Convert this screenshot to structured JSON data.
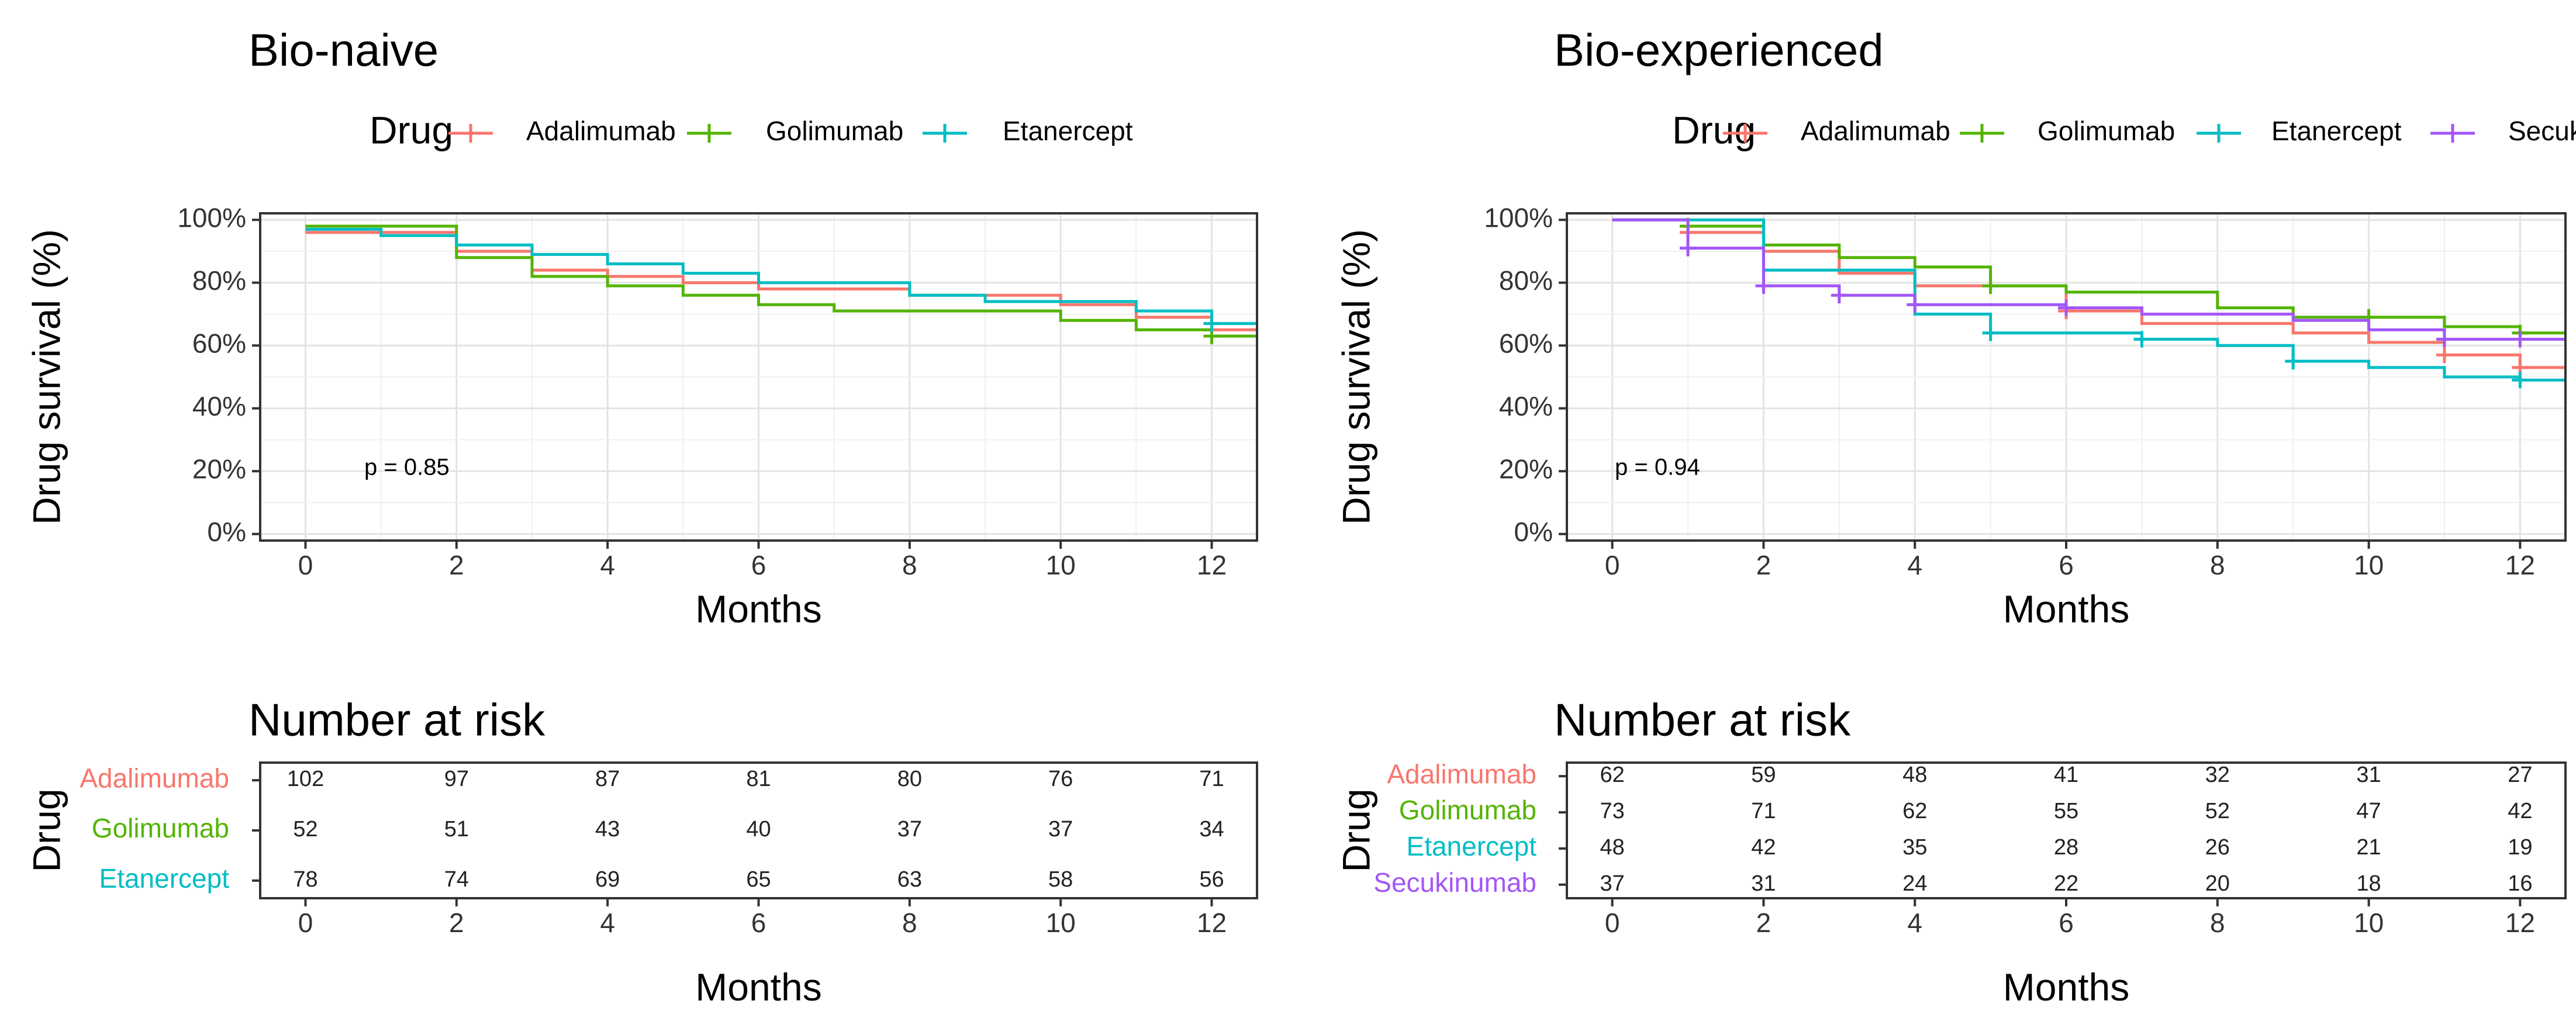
{
  "colors": {
    "Adalimumab": "#F8766D",
    "Golimumab": "#53B400",
    "Etanercept": "#00BDC4",
    "Secukinumab": "#A356F7"
  },
  "legend_title": "Drug",
  "chart_data": [
    {
      "type": "line",
      "title": "Bio-naive",
      "xlabel": "Months",
      "ylabel": "Drug survival (%)",
      "x_ticks": [
        0,
        2,
        4,
        6,
        8,
        10,
        12
      ],
      "y_ticks": [
        "0%",
        "20%",
        "40%",
        "60%",
        "80%",
        "100%"
      ],
      "xlim": [
        -0.6,
        12.6
      ],
      "ylim": [
        0,
        100
      ],
      "grid": true,
      "legend_position": "top",
      "annotation": "p = 0.85",
      "series": [
        {
          "name": "Adalimumab",
          "x": [
            0,
            1,
            2,
            3,
            4,
            5,
            6,
            8,
            10,
            11,
            12
          ],
          "y": [
            96,
            96,
            90,
            84,
            82,
            80,
            78,
            76,
            73,
            69,
            65
          ],
          "censor": [
            12
          ]
        },
        {
          "name": "Golimumab",
          "x": [
            0,
            2,
            3,
            4,
            5,
            6,
            7,
            10,
            11,
            12
          ],
          "y": [
            98,
            88,
            82,
            79,
            76,
            73,
            71,
            68,
            65,
            63
          ],
          "censor": [
            12
          ]
        },
        {
          "name": "Etanercept",
          "x": [
            0,
            1,
            2,
            3,
            4,
            5,
            6,
            8,
            9,
            11,
            12
          ],
          "y": [
            97,
            95,
            92,
            89,
            86,
            83,
            80,
            76,
            74,
            71,
            67
          ],
          "censor": [
            12
          ]
        }
      ]
    },
    {
      "type": "line",
      "title": "Bio-experienced",
      "xlabel": "Months",
      "ylabel": "Drug survival (%)",
      "x_ticks": [
        0,
        2,
        4,
        6,
        8,
        10,
        12
      ],
      "y_ticks": [
        "0%",
        "20%",
        "40%",
        "60%",
        "80%",
        "100%"
      ],
      "xlim": [
        -0.6,
        12.6
      ],
      "ylim": [
        0,
        100
      ],
      "grid": true,
      "legend_position": "top",
      "annotation": "p = 0.94",
      "series": [
        {
          "name": "Adalimumab",
          "x": [
            0,
            1,
            2,
            3,
            4,
            6,
            7,
            9,
            10,
            11,
            12
          ],
          "y": [
            100,
            96,
            90,
            83,
            79,
            71,
            67,
            64,
            61,
            57,
            53
          ],
          "censor": [
            1,
            6,
            11,
            12
          ]
        },
        {
          "name": "Golimumab",
          "x": [
            0,
            1,
            2,
            3,
            4,
            5,
            6,
            8,
            9,
            11,
            12
          ],
          "y": [
            100,
            98,
            92,
            88,
            85,
            79,
            77,
            72,
            69,
            66,
            64
          ],
          "censor": [
            1,
            5,
            10,
            12
          ]
        },
        {
          "name": "Etanercept",
          "x": [
            0,
            2,
            4,
            5,
            7,
            8,
            9,
            10,
            11,
            12
          ],
          "y": [
            100,
            84,
            70,
            64,
            62,
            60,
            55,
            53,
            50,
            49
          ],
          "censor": [
            5,
            7,
            9,
            12
          ]
        },
        {
          "name": "Secukinumab",
          "x": [
            0,
            1,
            2,
            3,
            4,
            6,
            7,
            9,
            10,
            11,
            12
          ],
          "y": [
            100,
            91,
            79,
            76,
            73,
            72,
            70,
            68,
            65,
            62,
            62
          ],
          "censor": [
            1,
            2,
            3,
            4,
            6,
            11,
            12
          ]
        }
      ]
    },
    {
      "type": "table",
      "title": "Number at risk",
      "xlabel": "Months",
      "ylabel": "Drug",
      "x_ticks": [
        0,
        2,
        4,
        6,
        8,
        10,
        12
      ],
      "rows": [
        {
          "name": "Adalimumab",
          "values": [
            102,
            97,
            87,
            81,
            80,
            76,
            71
          ]
        },
        {
          "name": "Golimumab",
          "values": [
            52,
            51,
            43,
            40,
            37,
            37,
            34
          ]
        },
        {
          "name": "Etanercept",
          "values": [
            78,
            74,
            69,
            65,
            63,
            58,
            56
          ]
        }
      ]
    },
    {
      "type": "table",
      "title": "Number at risk",
      "xlabel": "Months",
      "ylabel": "Drug",
      "x_ticks": [
        0,
        2,
        4,
        6,
        8,
        10,
        12
      ],
      "rows": [
        {
          "name": "Adalimumab",
          "values": [
            62,
            59,
            48,
            41,
            32,
            31,
            27
          ]
        },
        {
          "name": "Golimumab",
          "values": [
            73,
            71,
            62,
            55,
            52,
            47,
            42
          ]
        },
        {
          "name": "Etanercept",
          "values": [
            48,
            42,
            35,
            28,
            26,
            21,
            19
          ]
        },
        {
          "name": "Secukinumab",
          "values": [
            37,
            31,
            24,
            22,
            20,
            18,
            16
          ]
        }
      ]
    }
  ]
}
